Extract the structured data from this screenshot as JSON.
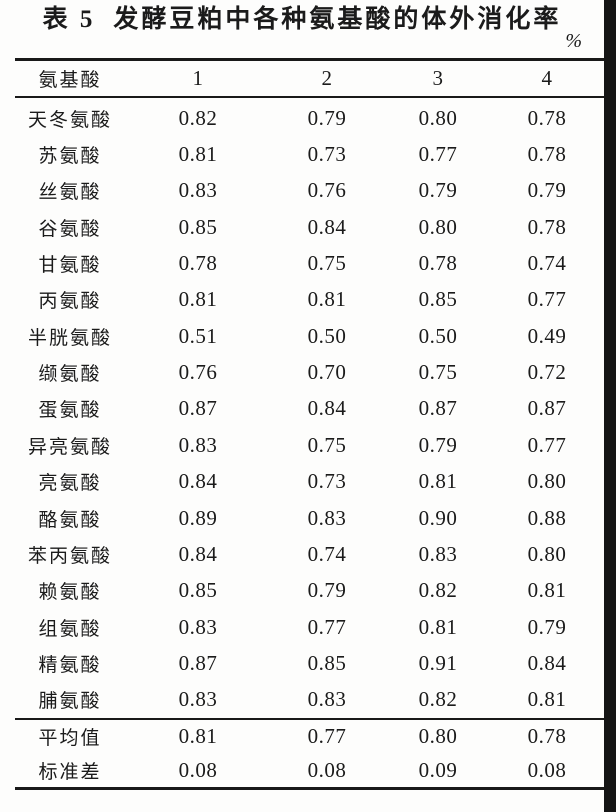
{
  "colors": {
    "ink": "#1b1b1b",
    "rule": "#191919",
    "scan_edge": "#151515"
  },
  "table": {
    "caption_prefix": "表 5",
    "caption_text": "发酵豆粕中各种氨基酸的体外消化率",
    "unit_label": "%",
    "columns": [
      "氨基酸",
      "1",
      "2",
      "3",
      "4"
    ],
    "rows": [
      {
        "label": "天冬氨酸",
        "values": [
          "0.82",
          "0.79",
          "0.80",
          "0.78"
        ]
      },
      {
        "label": "苏氨酸",
        "values": [
          "0.81",
          "0.73",
          "0.77",
          "0.78"
        ]
      },
      {
        "label": "丝氨酸",
        "values": [
          "0.83",
          "0.76",
          "0.79",
          "0.79"
        ]
      },
      {
        "label": "谷氨酸",
        "values": [
          "0.85",
          "0.84",
          "0.80",
          "0.78"
        ]
      },
      {
        "label": "甘氨酸",
        "values": [
          "0.78",
          "0.75",
          "0.78",
          "0.74"
        ]
      },
      {
        "label": "丙氨酸",
        "values": [
          "0.81",
          "0.81",
          "0.85",
          "0.77"
        ]
      },
      {
        "label": "半胱氨酸",
        "values": [
          "0.51",
          "0.50",
          "0.50",
          "0.49"
        ]
      },
      {
        "label": "缬氨酸",
        "values": [
          "0.76",
          "0.70",
          "0.75",
          "0.72"
        ]
      },
      {
        "label": "蛋氨酸",
        "values": [
          "0.87",
          "0.84",
          "0.87",
          "0.87"
        ]
      },
      {
        "label": "异亮氨酸",
        "values": [
          "0.83",
          "0.75",
          "0.79",
          "0.77"
        ]
      },
      {
        "label": "亮氨酸",
        "values": [
          "0.84",
          "0.73",
          "0.81",
          "0.80"
        ]
      },
      {
        "label": "酪氨酸",
        "values": [
          "0.89",
          "0.83",
          "0.90",
          "0.88"
        ]
      },
      {
        "label": "苯丙氨酸",
        "values": [
          "0.84",
          "0.74",
          "0.83",
          "0.80"
        ]
      },
      {
        "label": "赖氨酸",
        "values": [
          "0.85",
          "0.79",
          "0.82",
          "0.81"
        ]
      },
      {
        "label": "组氨酸",
        "values": [
          "0.83",
          "0.77",
          "0.81",
          "0.79"
        ]
      },
      {
        "label": "精氨酸",
        "values": [
          "0.87",
          "0.85",
          "0.91",
          "0.84"
        ]
      },
      {
        "label": "脯氨酸",
        "values": [
          "0.83",
          "0.83",
          "0.82",
          "0.81"
        ]
      }
    ],
    "summary_rows": [
      {
        "label": "平均值",
        "values": [
          "0.81",
          "0.77",
          "0.80",
          "0.78"
        ]
      },
      {
        "label": "标准差",
        "values": [
          "0.08",
          "0.08",
          "0.09",
          "0.08"
        ]
      }
    ]
  }
}
